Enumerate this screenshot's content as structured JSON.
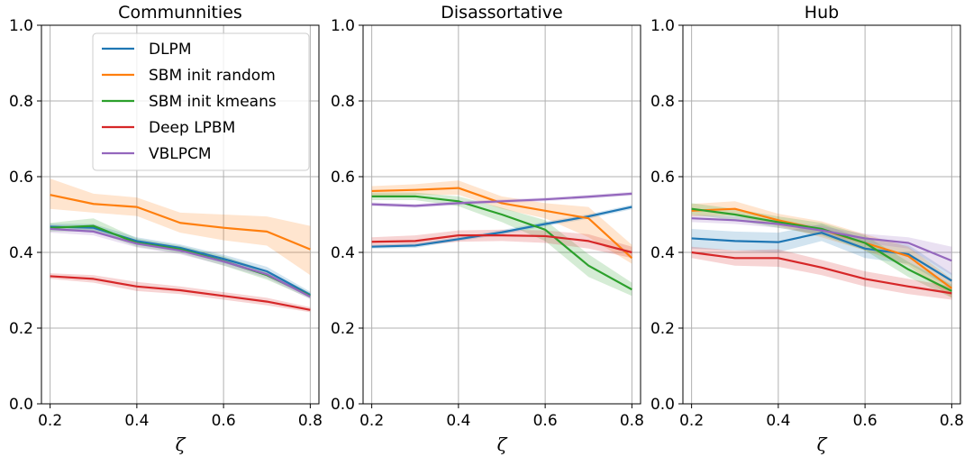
{
  "chart_data": [
    {
      "type": "line",
      "title": "Communnities",
      "xlabel": "ζ",
      "ylabel": "",
      "xlim": [
        0.18,
        0.82
      ],
      "ylim": [
        0.0,
        1.0
      ],
      "xticks": [
        "0.2",
        "0.4",
        "0.6",
        "0.8"
      ],
      "yticks": [
        "0.0",
        "0.2",
        "0.4",
        "0.6",
        "0.8",
        "1.0"
      ],
      "grid": true,
      "legend_position": "upper-center",
      "x": [
        0.2,
        0.3,
        0.4,
        0.5,
        0.6,
        0.7,
        0.8
      ],
      "series": [
        {
          "name": "DLPM",
          "color": "#1f77b4",
          "values": [
            0.468,
            0.465,
            0.43,
            0.412,
            0.383,
            0.35,
            0.288
          ],
          "lower": [
            0.46,
            0.455,
            0.42,
            0.403,
            0.372,
            0.338,
            0.28
          ],
          "upper": [
            0.476,
            0.475,
            0.44,
            0.421,
            0.394,
            0.362,
            0.296
          ]
        },
        {
          "name": "SBM init random",
          "color": "#ff7f0e",
          "values": [
            0.552,
            0.528,
            0.52,
            0.478,
            0.465,
            0.455,
            0.408
          ],
          "lower": [
            0.515,
            0.505,
            0.496,
            0.452,
            0.432,
            0.418,
            0.34
          ],
          "upper": [
            0.595,
            0.555,
            0.545,
            0.505,
            0.5,
            0.495,
            0.47
          ]
        },
        {
          "name": "SBM init kmeans",
          "color": "#2ca02c",
          "values": [
            0.465,
            0.47,
            0.425,
            0.408,
            0.377,
            0.34,
            0.285
          ],
          "lower": [
            0.455,
            0.455,
            0.415,
            0.398,
            0.365,
            0.328,
            0.278
          ],
          "upper": [
            0.478,
            0.49,
            0.437,
            0.418,
            0.39,
            0.352,
            0.293
          ]
        },
        {
          "name": "Deep LPBM",
          "color": "#d62728",
          "values": [
            0.337,
            0.33,
            0.31,
            0.3,
            0.285,
            0.27,
            0.248
          ],
          "lower": [
            0.33,
            0.32,
            0.298,
            0.29,
            0.275,
            0.26,
            0.242
          ],
          "upper": [
            0.345,
            0.34,
            0.322,
            0.31,
            0.295,
            0.28,
            0.255
          ]
        },
        {
          "name": "VBLPCM",
          "color": "#9467bd",
          "values": [
            0.462,
            0.455,
            0.423,
            0.405,
            0.376,
            0.342,
            0.283
          ],
          "lower": [
            0.452,
            0.445,
            0.413,
            0.395,
            0.366,
            0.332,
            0.276
          ],
          "upper": [
            0.472,
            0.465,
            0.433,
            0.415,
            0.386,
            0.352,
            0.29
          ]
        }
      ]
    },
    {
      "type": "line",
      "title": "Disassortative",
      "xlabel": "ζ",
      "ylabel": "",
      "xlim": [
        0.18,
        0.82
      ],
      "ylim": [
        0.0,
        1.0
      ],
      "xticks": [
        "0.2",
        "0.4",
        "0.6",
        "0.8"
      ],
      "yticks": [
        "0.0",
        "0.2",
        "0.4",
        "0.6",
        "0.8",
        "1.0"
      ],
      "grid": true,
      "x": [
        0.2,
        0.3,
        0.4,
        0.5,
        0.6,
        0.7,
        0.8
      ],
      "series": [
        {
          "name": "DLPM",
          "color": "#1f77b4",
          "values": [
            0.415,
            0.418,
            0.435,
            0.453,
            0.475,
            0.495,
            0.52
          ],
          "lower": [
            0.41,
            0.412,
            0.43,
            0.447,
            0.469,
            0.489,
            0.514
          ],
          "upper": [
            0.42,
            0.424,
            0.44,
            0.459,
            0.481,
            0.501,
            0.526
          ]
        },
        {
          "name": "SBM init random",
          "color": "#ff7f0e",
          "values": [
            0.562,
            0.565,
            0.57,
            0.53,
            0.51,
            0.49,
            0.385
          ],
          "lower": [
            0.548,
            0.552,
            0.552,
            0.515,
            0.49,
            0.44,
            0.37
          ],
          "upper": [
            0.575,
            0.58,
            0.59,
            0.548,
            0.53,
            0.52,
            0.42
          ]
        },
        {
          "name": "SBM init kmeans",
          "color": "#2ca02c",
          "values": [
            0.548,
            0.548,
            0.535,
            0.5,
            0.46,
            0.365,
            0.302
          ],
          "lower": [
            0.538,
            0.538,
            0.522,
            0.48,
            0.43,
            0.335,
            0.285
          ],
          "upper": [
            0.558,
            0.558,
            0.548,
            0.518,
            0.485,
            0.395,
            0.32
          ]
        },
        {
          "name": "Deep LPBM",
          "color": "#d62728",
          "values": [
            0.428,
            0.43,
            0.445,
            0.445,
            0.443,
            0.43,
            0.4
          ],
          "lower": [
            0.415,
            0.418,
            0.428,
            0.43,
            0.425,
            0.41,
            0.385
          ],
          "upper": [
            0.44,
            0.445,
            0.458,
            0.46,
            0.458,
            0.448,
            0.415
          ]
        },
        {
          "name": "VBLPCM",
          "color": "#9467bd",
          "values": [
            0.527,
            0.523,
            0.53,
            0.535,
            0.54,
            0.547,
            0.555
          ],
          "lower": [
            0.522,
            0.518,
            0.525,
            0.53,
            0.535,
            0.542,
            0.55
          ],
          "upper": [
            0.532,
            0.528,
            0.535,
            0.54,
            0.545,
            0.552,
            0.56
          ]
        }
      ]
    },
    {
      "type": "line",
      "title": "Hub",
      "xlabel": "ζ",
      "ylabel": "",
      "xlim": [
        0.18,
        0.82
      ],
      "ylim": [
        0.0,
        1.0
      ],
      "xticks": [
        "0.2",
        "0.4",
        "0.6",
        "0.8"
      ],
      "yticks": [
        "0.0",
        "0.2",
        "0.4",
        "0.6",
        "0.8",
        "1.0"
      ],
      "grid": true,
      "x": [
        0.2,
        0.3,
        0.4,
        0.5,
        0.6,
        0.7,
        0.8
      ],
      "series": [
        {
          "name": "DLPM",
          "color": "#1f77b4",
          "values": [
            0.437,
            0.43,
            0.427,
            0.452,
            0.41,
            0.395,
            0.325
          ],
          "lower": [
            0.41,
            0.405,
            0.4,
            0.43,
            0.385,
            0.37,
            0.305
          ],
          "upper": [
            0.462,
            0.455,
            0.452,
            0.475,
            0.435,
            0.42,
            0.345
          ]
        },
        {
          "name": "SBM init random",
          "color": "#ff7f0e",
          "values": [
            0.51,
            0.515,
            0.485,
            0.46,
            0.425,
            0.39,
            0.305
          ],
          "lower": [
            0.495,
            0.498,
            0.47,
            0.44,
            0.405,
            0.365,
            0.28
          ],
          "upper": [
            0.528,
            0.535,
            0.502,
            0.482,
            0.448,
            0.415,
            0.33
          ]
        },
        {
          "name": "SBM init kmeans",
          "color": "#2ca02c",
          "values": [
            0.515,
            0.5,
            0.48,
            0.462,
            0.425,
            0.355,
            0.298
          ],
          "lower": [
            0.5,
            0.485,
            0.465,
            0.445,
            0.405,
            0.335,
            0.28
          ],
          "upper": [
            0.53,
            0.515,
            0.495,
            0.478,
            0.445,
            0.375,
            0.315
          ]
        },
        {
          "name": "Deep LPBM",
          "color": "#d62728",
          "values": [
            0.4,
            0.385,
            0.385,
            0.36,
            0.33,
            0.31,
            0.292
          ],
          "lower": [
            0.385,
            0.365,
            0.362,
            0.34,
            0.31,
            0.29,
            0.275
          ],
          "upper": [
            0.415,
            0.405,
            0.408,
            0.38,
            0.35,
            0.33,
            0.31
          ]
        },
        {
          "name": "VBLPCM",
          "color": "#9467bd",
          "values": [
            0.49,
            0.485,
            0.475,
            0.458,
            0.437,
            0.425,
            0.378
          ],
          "lower": [
            0.48,
            0.475,
            0.465,
            0.447,
            0.425,
            0.41,
            0.34
          ],
          "upper": [
            0.5,
            0.495,
            0.485,
            0.469,
            0.449,
            0.44,
            0.415
          ]
        }
      ]
    }
  ]
}
